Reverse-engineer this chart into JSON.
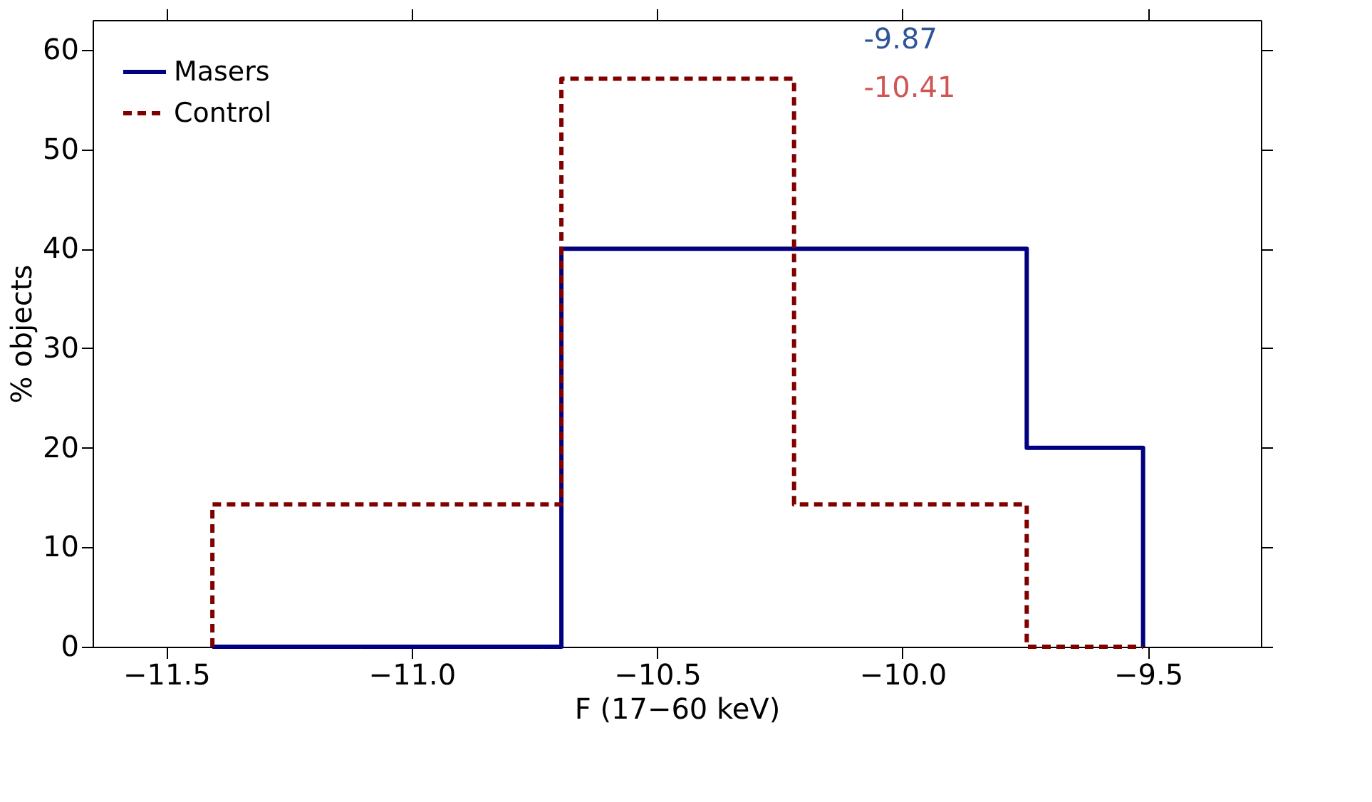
{
  "chart_data": {
    "type": "histogram",
    "xlabel": "F (17−60 keV)",
    "ylabel": "% objects",
    "bins": [
      -11.406,
      -11.169,
      -10.932,
      -10.695,
      -10.458,
      -10.221,
      -9.984,
      -9.747,
      -9.51
    ],
    "series": [
      {
        "name": "Masers",
        "color": "#000080",
        "line_style": "solid",
        "values": [
          0,
          0,
          0,
          40,
          40,
          40,
          40,
          20
        ]
      },
      {
        "name": "Control",
        "color": "#800000",
        "line_style": "dashed",
        "values": [
          14.3,
          14.3,
          14.3,
          57.1,
          57.1,
          14.3,
          14.3,
          0
        ]
      }
    ],
    "annotations": [
      "-9.87",
      "-10.41"
    ],
    "xlim": [
      -11.65,
      -9.27
    ],
    "xticks": [
      {
        "value": -11.5,
        "label": "−11.5"
      },
      {
        "value": -11.0,
        "label": "−11.0"
      },
      {
        "value": -10.5,
        "label": "−10.5"
      },
      {
        "value": -10.0,
        "label": "−10.0"
      },
      {
        "value": -9.5,
        "label": "−9.5"
      }
    ],
    "ylim": [
      0,
      63
    ],
    "yticks": [
      0,
      10,
      20,
      30,
      40,
      50,
      60
    ],
    "legend": "top left",
    "grid": false
  }
}
